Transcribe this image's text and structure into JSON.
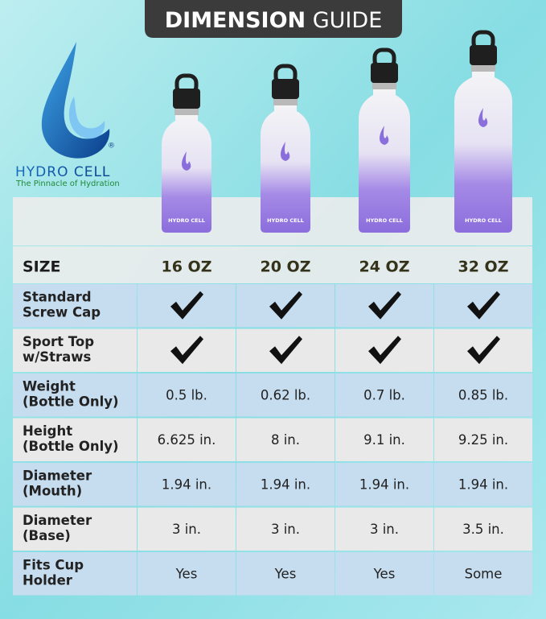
{
  "header": {
    "title_bold": "DIMENSION",
    "title_light": "GUIDE"
  },
  "brand": {
    "name": "HYDRO CELL",
    "registered": "®",
    "tagline": "The Pinnacle of Hydration"
  },
  "bottle_label": "HYDRO CELL",
  "table": {
    "size_label": "SIZE",
    "sizes": [
      "16 OZ",
      "20 OZ",
      "24 OZ",
      "32 OZ"
    ],
    "rows": [
      {
        "label": [
          "Standard",
          "Screw Cap"
        ],
        "check": [
          true,
          true,
          true,
          true
        ]
      },
      {
        "label": [
          "Sport Top",
          "w/Straws"
        ],
        "check": [
          true,
          true,
          true,
          true
        ]
      },
      {
        "label": [
          "Weight",
          "(Bottle Only)"
        ],
        "cells": [
          "0.5 lb.",
          "0.62 lb.",
          "0.7 lb.",
          "0.85 lb."
        ]
      },
      {
        "label": [
          "Height",
          "(Bottle Only)"
        ],
        "cells": [
          "6.625 in.",
          "8 in.",
          "9.1 in.",
          "9.25 in."
        ]
      },
      {
        "label": [
          "Diameter",
          "(Mouth)"
        ],
        "cells": [
          "1.94 in.",
          "1.94 in.",
          "1.94 in.",
          "1.94 in."
        ]
      },
      {
        "label": [
          "Diameter",
          "(Base)"
        ],
        "cells": [
          "3 in.",
          "3 in.",
          "3 in.",
          "3.5 in."
        ]
      },
      {
        "label": [
          "Fits Cup",
          "Holder"
        ],
        "cells": [
          "Yes",
          "Yes",
          "Yes",
          "Some"
        ]
      }
    ]
  }
}
